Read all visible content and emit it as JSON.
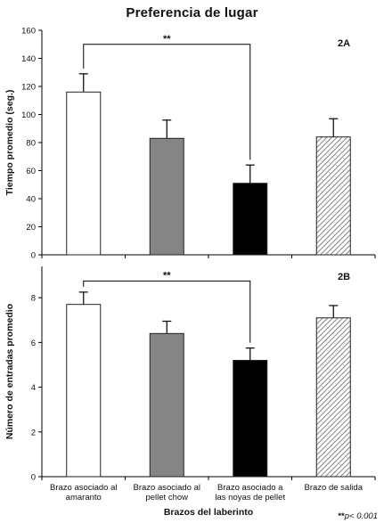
{
  "figure": {
    "title": "Preferencia de lugar",
    "xlabel": "Brazos del laberinto",
    "footnote": "**p< 0.001",
    "footnote_stars": "**",
    "footnote_text": "p< 0.001"
  },
  "categories": [
    "Brazo asociado al amaranto",
    "Brazo asociado al pellet chow",
    "Brazo asociado a las noyas de pellet",
    "Brazo de salida"
  ],
  "category_label_lines": [
    [
      "Brazo asociado al",
      "amaranto"
    ],
    [
      "Brazo asociado al",
      "pellet chow"
    ],
    [
      "Brazo asociado a",
      "las noyas de pellet"
    ],
    [
      "Brazo de salida"
    ]
  ],
  "bar_styles": [
    "white",
    "gray",
    "black",
    "hatched"
  ],
  "colors": {
    "white": "#ffffff",
    "gray": "#858585",
    "black": "#000000",
    "hatch_line": "#666666",
    "axis": "#000000"
  },
  "chart_data": [
    {
      "type": "bar",
      "panel_label": "2A",
      "ylabel": "Tiempo promedio (seg.)",
      "ylim": [
        0,
        160
      ],
      "yticks": [
        0,
        20,
        40,
        60,
        80,
        100,
        120,
        140,
        160
      ],
      "categories": [
        "Brazo asociado al amaranto",
        "Brazo asociado al pellet chow",
        "Brazo asociado a las noyas de pellet",
        "Brazo de salida"
      ],
      "values": [
        116,
        83,
        51,
        84
      ],
      "errors": [
        13,
        13,
        13,
        13
      ],
      "significance": {
        "from": 0,
        "to": 2,
        "label": "**",
        "y": 150
      }
    },
    {
      "type": "bar",
      "panel_label": "2B",
      "ylabel": "Número de entradas promedio",
      "ylim": [
        0,
        9.4
      ],
      "yticks": [
        0,
        2,
        4,
        6,
        8
      ],
      "categories": [
        "Brazo asociado al amaranto",
        "Brazo asociado al pellet chow",
        "Brazo asociado a las noyas de pellet",
        "Brazo de salida"
      ],
      "values": [
        7.7,
        6.4,
        5.2,
        7.1
      ],
      "errors": [
        0.55,
        0.55,
        0.55,
        0.55
      ],
      "significance": {
        "from": 0,
        "to": 2,
        "label": "**",
        "y": 8.75
      }
    }
  ]
}
